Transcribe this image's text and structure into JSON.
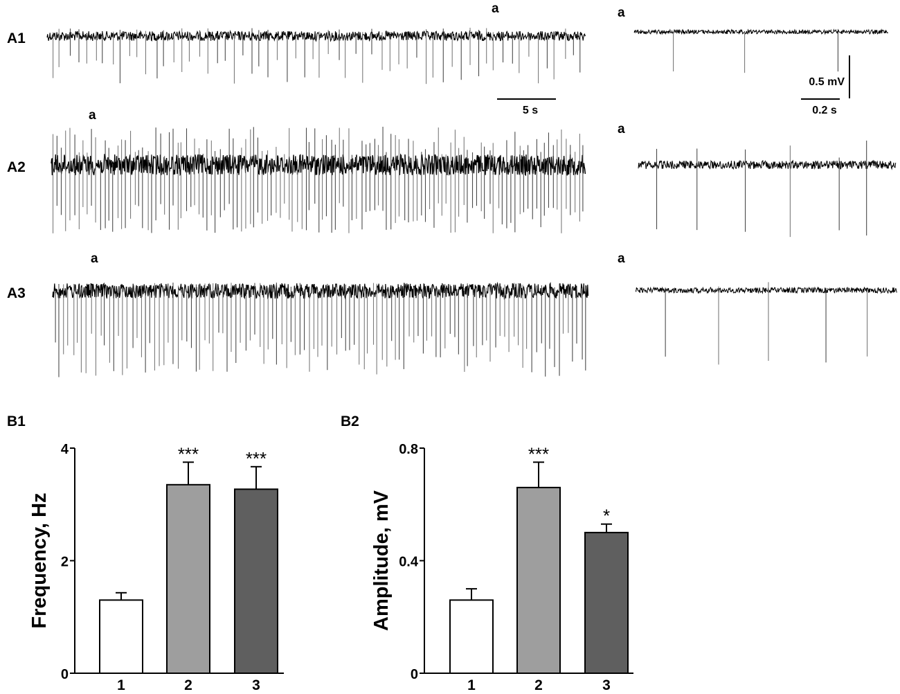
{
  "traces": [
    {
      "label": "A1",
      "marker": "a",
      "inset_marker": "a"
    },
    {
      "label": "A2",
      "marker": "a",
      "inset_marker": "a"
    },
    {
      "label": "A3",
      "marker": "a",
      "inset_marker": "a"
    }
  ],
  "scale_bars": {
    "time_long": "5 s",
    "voltage": "0.5 mV",
    "time_short": "0.2 s"
  },
  "chart_data": [
    {
      "panel": "B1",
      "type": "bar",
      "categories": [
        "1",
        "2",
        "3"
      ],
      "values": [
        1.3,
        3.35,
        3.27
      ],
      "errors": [
        0.13,
        0.4,
        0.4
      ],
      "significance": [
        "",
        "***",
        "***"
      ],
      "colors": [
        "#ffffff",
        "#9e9e9e",
        "#5f5f5f"
      ],
      "ylabel": "Frequency, Hz",
      "xlabel": "",
      "ylim": [
        0,
        4
      ],
      "yticks": [
        0,
        2,
        4
      ],
      "ytick_labels": [
        "0",
        "2",
        "4"
      ]
    },
    {
      "panel": "B2",
      "type": "bar",
      "categories": [
        "1",
        "2",
        "3"
      ],
      "values": [
        0.26,
        0.66,
        0.5
      ],
      "errors": [
        0.04,
        0.09,
        0.03
      ],
      "significance": [
        "",
        "***",
        "*"
      ],
      "colors": [
        "#ffffff",
        "#9e9e9e",
        "#5f5f5f"
      ],
      "ylabel": "Amplitude, mV",
      "xlabel": "",
      "ylim": [
        0,
        0.8
      ],
      "yticks": [
        0,
        0.4,
        0.8
      ],
      "ytick_labels": [
        "0",
        "0.4",
        "0.8"
      ]
    }
  ]
}
